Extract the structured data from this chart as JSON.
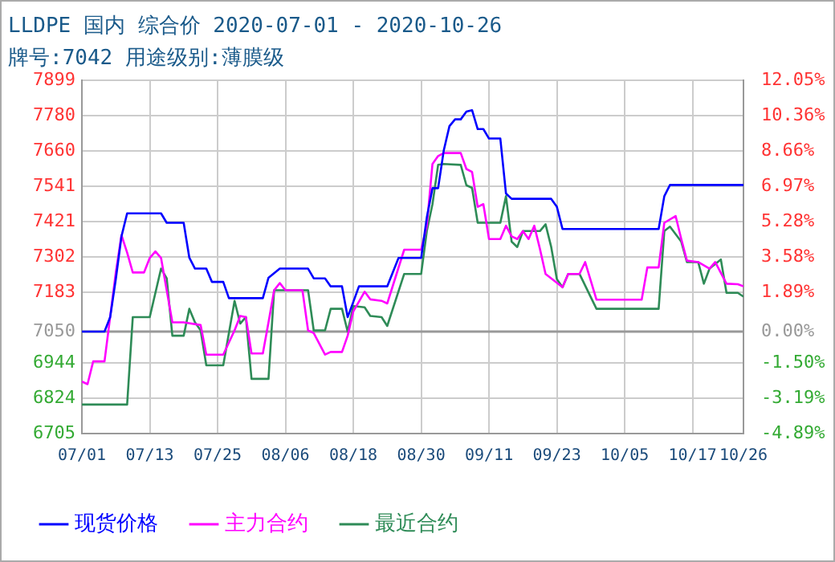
{
  "chart_data": {
    "type": "line",
    "title": "LLDPE 国内 综合价 2020-07-01 - 2020-10-26",
    "subtitle": "牌号:7042 用途级别:薄膜级",
    "xlim": [
      "2020-07-01",
      "2020-10-26"
    ],
    "xticks": [
      {
        "value": "2020-07-01",
        "label": "07/01"
      },
      {
        "value": "2020-07-13",
        "label": "07/13"
      },
      {
        "value": "2020-07-25",
        "label": "07/25"
      },
      {
        "value": "2020-08-06",
        "label": "08/06"
      },
      {
        "value": "2020-08-18",
        "label": "08/18"
      },
      {
        "value": "2020-08-30",
        "label": "08/30"
      },
      {
        "value": "2020-09-11",
        "label": "09/11"
      },
      {
        "value": "2020-09-23",
        "label": "09/23"
      },
      {
        "value": "2020-10-05",
        "label": "10/05"
      },
      {
        "value": "2020-10-17",
        "label": "10/17"
      },
      {
        "value": "2020-10-26",
        "label": "10/26"
      }
    ],
    "ylim": [
      6705,
      7899
    ],
    "yticks": [
      6705,
      6824,
      6944,
      7050,
      7183,
      7302,
      7421,
      7541,
      7660,
      7780,
      7899
    ],
    "y2lim": [
      -4.89,
      12.05
    ],
    "y2ticks": [
      {
        "value": -4.89,
        "label": "-4.89%"
      },
      {
        "value": -3.19,
        "label": "-3.19%"
      },
      {
        "value": -1.5,
        "label": "-1.50%"
      },
      {
        "value": 0,
        "label": "0.00%"
      },
      {
        "value": 1.89,
        "label": "1.89%"
      },
      {
        "value": 3.58,
        "label": "3.58%"
      },
      {
        "value": 5.28,
        "label": "5.28%"
      },
      {
        "value": 6.97,
        "label": "6.97%"
      },
      {
        "value": 8.66,
        "label": "8.66%"
      },
      {
        "value": 10.36,
        "label": "10.36%"
      },
      {
        "value": 12.05,
        "label": "12.05%"
      }
    ],
    "ref_lines": [
      {
        "axis": "y",
        "value": 7050,
        "color": "#999999"
      }
    ],
    "grid": true,
    "legend": "bottom",
    "series": [
      {
        "name": "现货价格",
        "color": "#0000ff",
        "x": [
          "2020-07-01",
          "2020-07-05",
          "2020-07-06",
          "2020-07-07",
          "2020-07-08",
          "2020-07-09",
          "2020-07-15",
          "2020-07-16",
          "2020-07-19",
          "2020-07-20",
          "2020-07-21",
          "2020-07-23",
          "2020-07-24",
          "2020-07-26",
          "2020-07-27",
          "2020-08-02",
          "2020-08-03",
          "2020-08-05",
          "2020-08-10",
          "2020-08-11",
          "2020-08-13",
          "2020-08-14",
          "2020-08-16",
          "2020-08-17",
          "2020-08-18",
          "2020-08-19",
          "2020-08-24",
          "2020-08-26",
          "2020-08-30",
          "2020-08-31",
          "2020-09-01",
          "2020-09-02",
          "2020-09-03",
          "2020-09-04",
          "2020-09-05",
          "2020-09-06",
          "2020-09-07",
          "2020-09-08",
          "2020-09-09",
          "2020-09-10",
          "2020-09-11",
          "2020-09-13",
          "2020-09-14",
          "2020-09-15",
          "2020-09-22",
          "2020-09-23",
          "2020-09-24",
          "2020-10-11",
          "2020-10-12",
          "2020-10-13",
          "2020-10-26"
        ],
        "values": [
          7050,
          7050,
          7099,
          7228,
          7372,
          7450,
          7450,
          7418,
          7418,
          7300,
          7263,
          7263,
          7218,
          7218,
          7163,
          7163,
          7232,
          7263,
          7263,
          7230,
          7230,
          7203,
          7203,
          7099,
          7150,
          7203,
          7203,
          7299,
          7299,
          7436,
          7535,
          7535,
          7663,
          7745,
          7768,
          7768,
          7794,
          7799,
          7735,
          7735,
          7703,
          7703,
          7517,
          7499,
          7499,
          7472,
          7397,
          7397,
          7508,
          7546,
          7546
        ]
      },
      {
        "name": "主力合约",
        "color": "#ff00ff",
        "x": [
          "2020-07-01",
          "2020-07-02",
          "2020-07-03",
          "2020-07-05",
          "2020-07-06",
          "2020-07-07",
          "2020-07-08",
          "2020-07-09",
          "2020-07-10",
          "2020-07-12",
          "2020-07-13",
          "2020-07-14",
          "2020-07-15",
          "2020-07-16",
          "2020-07-17",
          "2020-07-19",
          "2020-07-22",
          "2020-07-23",
          "2020-07-26",
          "2020-07-28",
          "2020-07-29",
          "2020-07-30",
          "2020-07-31",
          "2020-08-02",
          "2020-08-03",
          "2020-08-04",
          "2020-08-05",
          "2020-08-06",
          "2020-08-09",
          "2020-08-10",
          "2020-08-11",
          "2020-08-13",
          "2020-08-14",
          "2020-08-16",
          "2020-08-17",
          "2020-08-18",
          "2020-08-20",
          "2020-08-21",
          "2020-08-23",
          "2020-08-24",
          "2020-08-27",
          "2020-08-30",
          "2020-08-31",
          "2020-09-01",
          "2020-09-02",
          "2020-09-03",
          "2020-09-06",
          "2020-09-07",
          "2020-09-08",
          "2020-09-09",
          "2020-09-10",
          "2020-09-11",
          "2020-09-13",
          "2020-09-14",
          "2020-09-15",
          "2020-09-16",
          "2020-09-17",
          "2020-09-18",
          "2020-09-19",
          "2020-09-20",
          "2020-09-21",
          "2020-09-24",
          "2020-09-25",
          "2020-09-27",
          "2020-09-28",
          "2020-09-30",
          "2020-10-08",
          "2020-10-09",
          "2020-10-11",
          "2020-10-12",
          "2020-10-14",
          "2020-10-15",
          "2020-10-16",
          "2020-10-18",
          "2020-10-20",
          "2020-10-21",
          "2020-10-23",
          "2020-10-25",
          "2020-10-26"
        ],
        "values": [
          6881,
          6872,
          6949,
          6949,
          7100,
          7250,
          7376,
          7317,
          7250,
          7250,
          7299,
          7321,
          7299,
          7190,
          7081,
          7081,
          7072,
          6972,
          6972,
          7054,
          7103,
          7099,
          6976,
          6976,
          7081,
          7190,
          7214,
          7190,
          7190,
          7054,
          7045,
          6972,
          6981,
          6981,
          7036,
          7118,
          7185,
          7159,
          7154,
          7145,
          7327,
          7327,
          7408,
          7617,
          7644,
          7654,
          7654,
          7600,
          7590,
          7472,
          7481,
          7363,
          7363,
          7408,
          7372,
          7363,
          7390,
          7363,
          7408,
          7330,
          7245,
          7200,
          7245,
          7245,
          7285,
          7158,
          7158,
          7267,
          7267,
          7418,
          7441,
          7363,
          7290,
          7285,
          7263,
          7285,
          7212,
          7210,
          7203
        ]
      },
      {
        "name": "最近合约",
        "color": "#2e8b57",
        "x": [
          "2020-07-01",
          "2020-07-09",
          "2020-07-10",
          "2020-07-13",
          "2020-07-15",
          "2020-07-16",
          "2020-07-17",
          "2020-07-19",
          "2020-07-20",
          "2020-07-21",
          "2020-07-22",
          "2020-07-23",
          "2020-07-26",
          "2020-07-28",
          "2020-07-29",
          "2020-07-30",
          "2020-07-31",
          "2020-08-03",
          "2020-08-04",
          "2020-08-10",
          "2020-08-11",
          "2020-08-13",
          "2020-08-14",
          "2020-08-16",
          "2020-08-17",
          "2020-08-18",
          "2020-08-20",
          "2020-08-21",
          "2020-08-23",
          "2020-08-24",
          "2020-08-27",
          "2020-08-30",
          "2020-08-31",
          "2020-09-01",
          "2020-09-02",
          "2020-09-03",
          "2020-09-06",
          "2020-09-07",
          "2020-09-08",
          "2020-09-09",
          "2020-09-13",
          "2020-09-14",
          "2020-09-15",
          "2020-09-16",
          "2020-09-17",
          "2020-09-20",
          "2020-09-21",
          "2020-09-22",
          "2020-09-23",
          "2020-09-24",
          "2020-09-25",
          "2020-09-27",
          "2020-09-30",
          "2020-10-11",
          "2020-10-12",
          "2020-10-13",
          "2020-10-15",
          "2020-10-16",
          "2020-10-18",
          "2020-10-19",
          "2020-10-20",
          "2020-10-22",
          "2020-10-23",
          "2020-10-25",
          "2020-10-26"
        ],
        "values": [
          6803,
          6803,
          7099,
          7099,
          7263,
          7230,
          7036,
          7036,
          7127,
          7081,
          7054,
          6936,
          6936,
          7154,
          7077,
          7099,
          6890,
          6890,
          7190,
          7190,
          7054,
          7054,
          7127,
          7127,
          7050,
          7136,
          7132,
          7103,
          7099,
          7069,
          7245,
          7245,
          7390,
          7481,
          7614,
          7617,
          7614,
          7545,
          7536,
          7418,
          7418,
          7508,
          7354,
          7336,
          7390,
          7390,
          7413,
          7336,
          7227,
          7200,
          7245,
          7245,
          7127,
          7127,
          7390,
          7405,
          7354,
          7285,
          7285,
          7212,
          7263,
          7294,
          7181,
          7181,
          7168
        ]
      }
    ]
  }
}
